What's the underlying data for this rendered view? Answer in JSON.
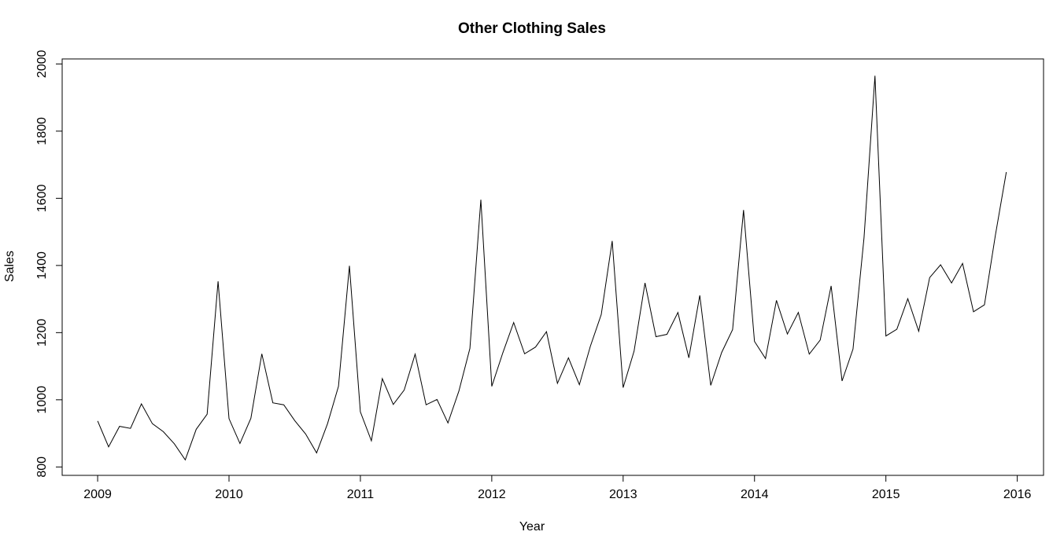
{
  "chart_data": {
    "type": "line",
    "title": "Other Clothing Sales",
    "xlabel": "Year",
    "ylabel": "Sales",
    "xlim": [
      2008.73,
      2016.2
    ],
    "ylim": [
      775,
      2015
    ],
    "x_ticks": [
      2009,
      2010,
      2011,
      2012,
      2013,
      2014,
      2015,
      2016
    ],
    "y_ticks": [
      800,
      1000,
      1200,
      1400,
      1600,
      1800,
      2000
    ],
    "x_tick_labels": [
      "2009",
      "2010",
      "2011",
      "2012",
      "2013",
      "2014",
      "2015",
      "2016"
    ],
    "y_tick_labels": [
      "800",
      "1000",
      "1200",
      "1400",
      "1600",
      "1800",
      "2000"
    ],
    "grid": false,
    "legend": false,
    "series": [
      {
        "start": 2009,
        "frequency": 12,
        "values": [
          937,
          860,
          921,
          915,
          988,
          929,
          905,
          869,
          821,
          912,
          957,
          1353,
          944,
          870,
          945,
          1137,
          991,
          985,
          938,
          898,
          842,
          929,
          1040,
          1399,
          964,
          878,
          1063,
          986,
          1029,
          1136,
          985,
          1001,
          931,
          1026,
          1153,
          1596,
          1040,
          1139,
          1230,
          1137,
          1157,
          1203,
          1049,
          1125,
          1045,
          1159,
          1254,
          1473,
          1036,
          1145,
          1348,
          1188,
          1195,
          1260,
          1125,
          1311,
          1043,
          1141,
          1209,
          1565,
          1174,
          1123,
          1296,
          1196,
          1260,
          1136,
          1178,
          1339,
          1056,
          1151,
          1483,
          1965,
          1190,
          1210,
          1301,
          1204,
          1364,
          1402,
          1348,
          1406,
          1262,
          1283,
          1490,
          1678
        ]
      }
    ]
  }
}
